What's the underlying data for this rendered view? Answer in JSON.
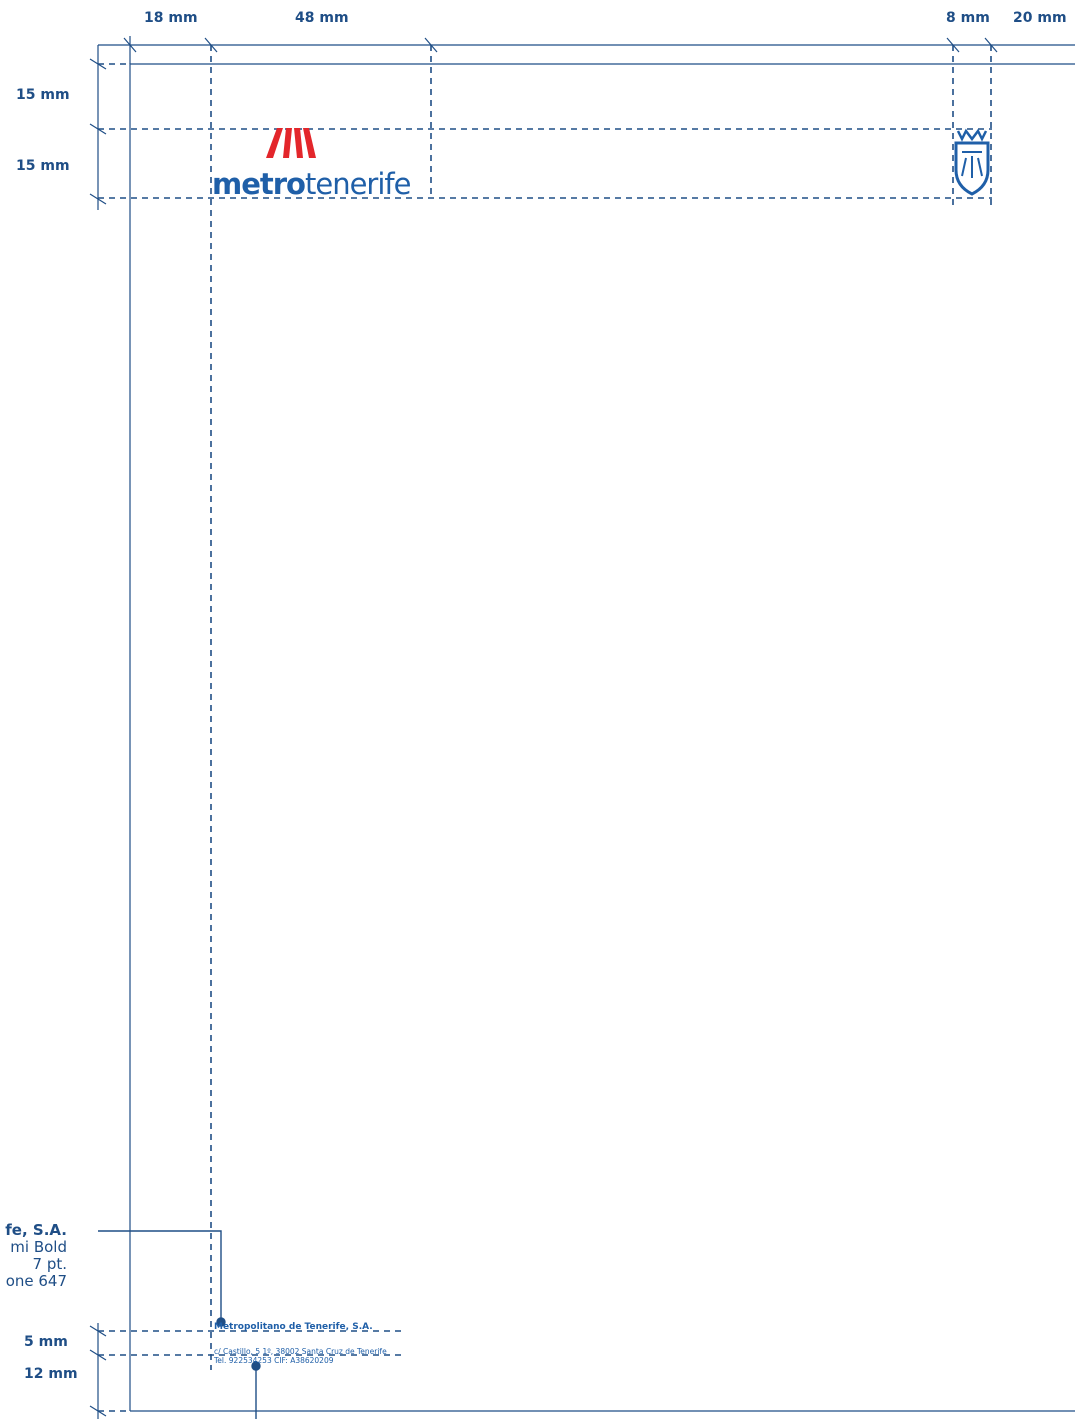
{
  "colors": {
    "guide": "#1f4e86",
    "brand_blue": "#1f5fa8",
    "brand_red": "#e3262b"
  },
  "dimensions": {
    "top": [
      "18 mm",
      "48 mm",
      "8 mm",
      "20 mm"
    ],
    "left_top": [
      "15 mm",
      "15 mm"
    ],
    "left_bottom": [
      "5 mm",
      "12 mm"
    ]
  },
  "logo": {
    "word_bold": "metro",
    "word_light": "tenerife"
  },
  "footer_callout": [
    "fe, S.A.",
    "mi Bold",
    "7 pt.",
    "one 647"
  ],
  "footer": {
    "company": "Metropolitano de Tenerife, S.A.",
    "address": "c/ Castillo, 5 1º, 38002 Santa Cruz de Tenerife",
    "contact": "Tel. 922534253  CIF: A38620209"
  }
}
